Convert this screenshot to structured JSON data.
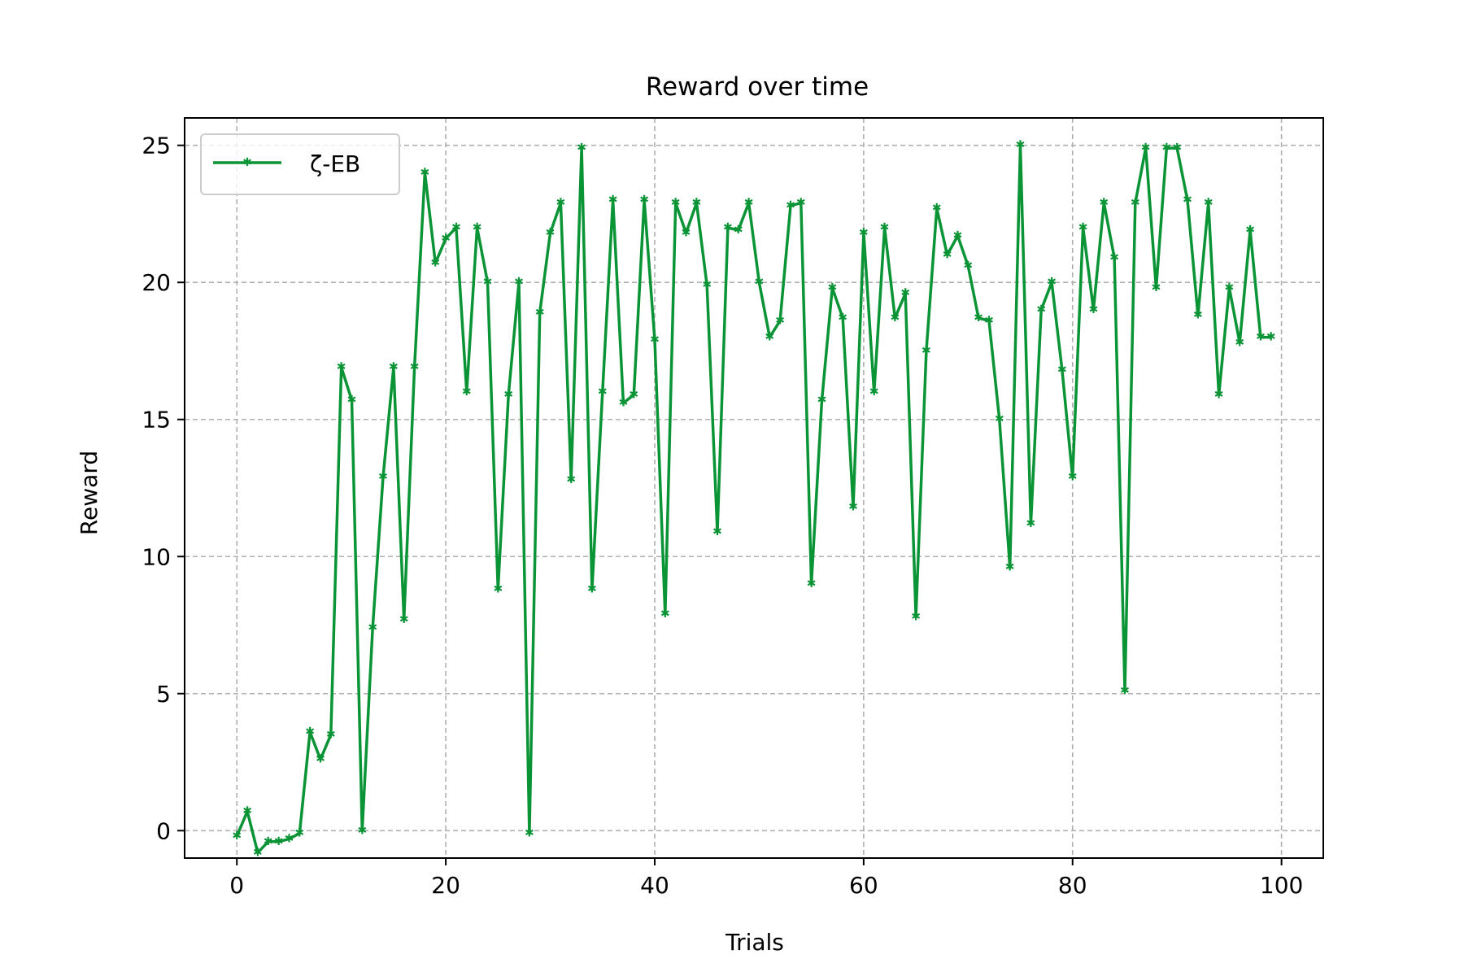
{
  "chart_data": {
    "type": "line",
    "title": "Reward over time",
    "xlabel": "Trials",
    "ylabel": "Reward",
    "xlim": [
      -5,
      104
    ],
    "ylim": [
      -1,
      26
    ],
    "xticks": [
      0,
      20,
      40,
      60,
      80,
      100
    ],
    "yticks": [
      0,
      5,
      10,
      15,
      20,
      25
    ],
    "grid": true,
    "grid_style": "dashed",
    "legend_position": "upper-left",
    "colors": {
      "series": "#0a9436",
      "grid": "#b0b0b0",
      "axes": "#000000"
    },
    "series": [
      {
        "name": "ζ-EB",
        "marker": "star",
        "x": [
          0,
          1,
          2,
          3,
          4,
          5,
          6,
          7,
          8,
          9,
          10,
          11,
          12,
          13,
          14,
          15,
          16,
          17,
          18,
          19,
          20,
          21,
          22,
          23,
          24,
          25,
          26,
          27,
          28,
          29,
          30,
          31,
          32,
          33,
          34,
          35,
          36,
          37,
          38,
          39,
          40,
          41,
          42,
          43,
          44,
          45,
          46,
          47,
          48,
          49,
          50,
          51,
          52,
          53,
          54,
          55,
          56,
          57,
          58,
          59,
          60,
          61,
          62,
          63,
          64,
          65,
          66,
          67,
          68,
          69,
          70,
          71,
          72,
          73,
          74,
          75,
          76,
          77,
          78,
          79,
          80,
          81,
          82,
          83,
          84,
          85,
          86,
          87,
          88,
          89,
          90,
          91,
          92,
          93,
          94,
          95,
          96,
          97,
          98,
          99
        ],
        "y": [
          -0.2,
          0.7,
          -0.8,
          -0.4,
          -0.4,
          -0.3,
          -0.1,
          3.6,
          2.6,
          3.5,
          16.9,
          15.7,
          0.0,
          7.4,
          12.9,
          16.9,
          7.7,
          16.9,
          24.0,
          20.7,
          21.6,
          22.0,
          16.0,
          22.0,
          20.0,
          8.8,
          15.9,
          20.0,
          -0.1,
          18.9,
          21.8,
          22.9,
          12.8,
          24.9,
          8.8,
          16.0,
          23.0,
          15.6,
          15.9,
          23.0,
          17.9,
          7.9,
          22.9,
          21.8,
          22.9,
          19.9,
          10.9,
          22.0,
          21.9,
          22.9,
          20.0,
          18.0,
          18.6,
          22.8,
          22.9,
          9.0,
          15.7,
          19.8,
          18.7,
          11.8,
          21.8,
          16.0,
          22.0,
          18.7,
          19.6,
          7.8,
          17.5,
          22.7,
          21.0,
          21.7,
          20.6,
          18.7,
          18.6,
          15.0,
          9.6,
          25.0,
          11.2,
          19.0,
          20.0,
          16.8,
          12.9,
          22.0,
          19.0,
          22.9,
          20.9,
          5.1,
          22.9,
          24.9,
          19.8,
          24.9,
          24.9,
          23.0,
          18.8,
          22.9,
          15.9,
          19.8,
          17.8,
          21.9,
          18.0,
          18.0
        ]
      }
    ]
  }
}
